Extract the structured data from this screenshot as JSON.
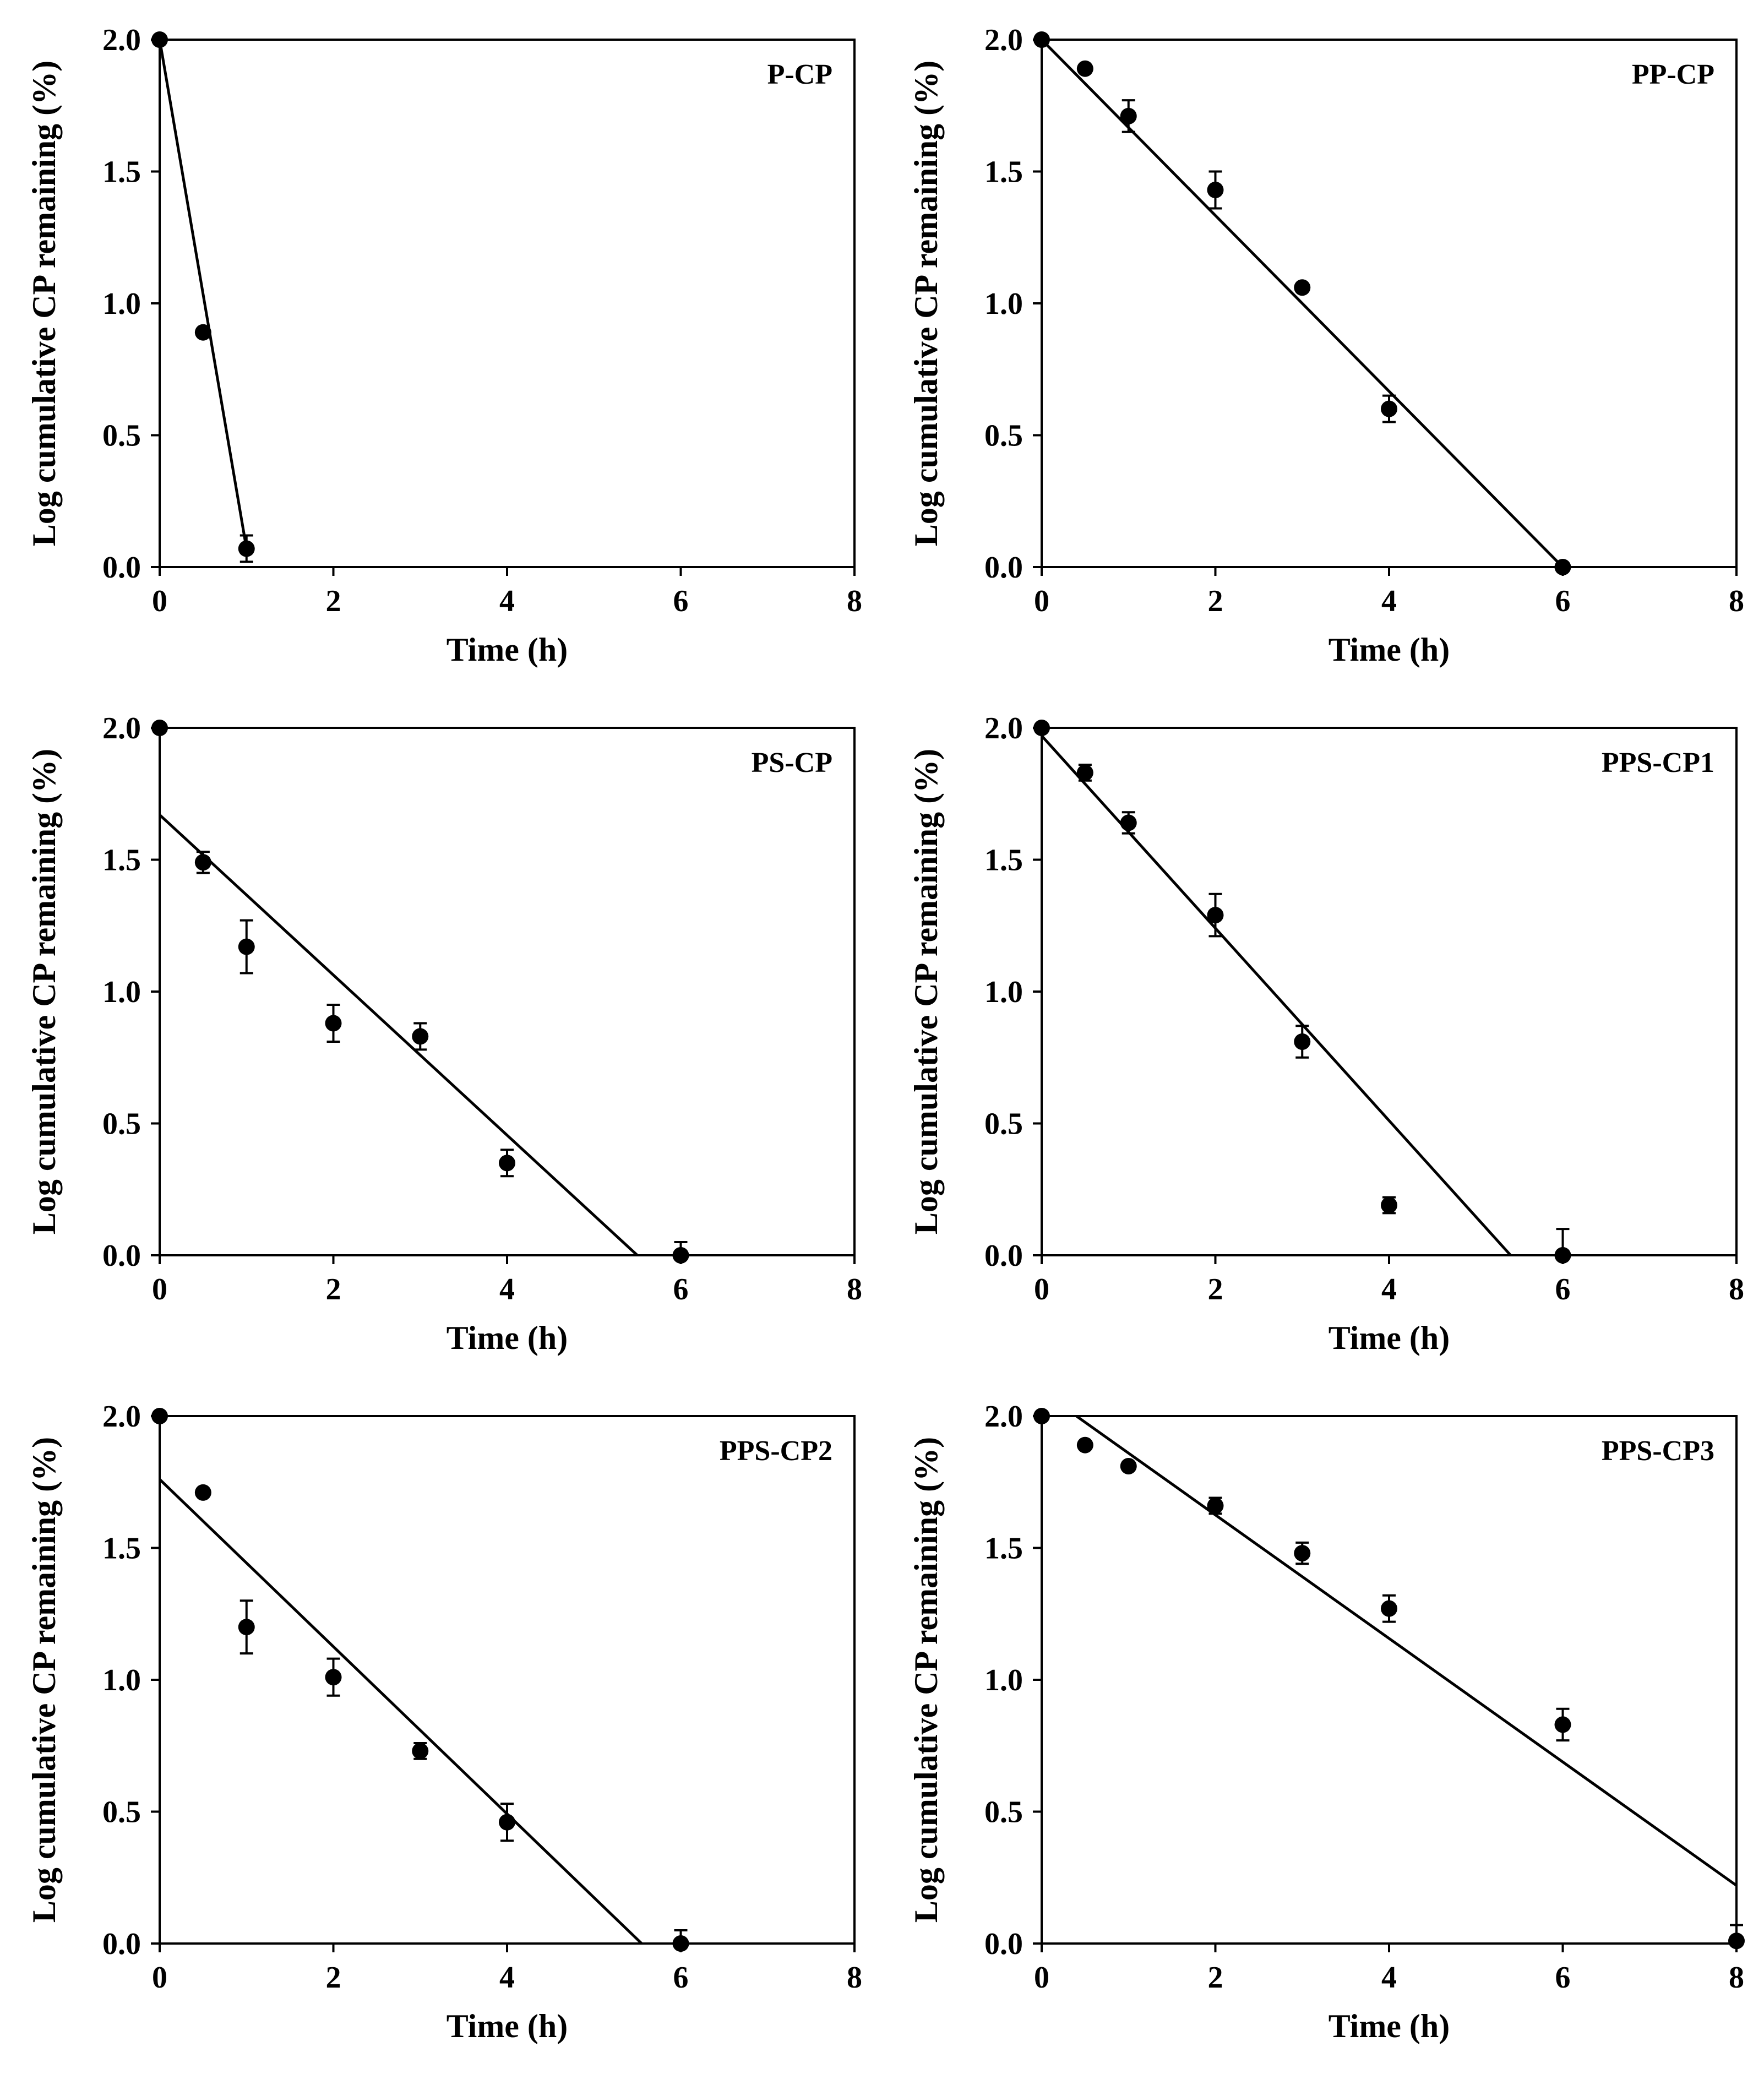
{
  "chart_data": [
    {
      "type": "scatter",
      "title": "P-CP",
      "xlabel": "Time (h)",
      "ylabel": "Log cumulative CP remaining  (%)",
      "xlim": [
        0,
        8
      ],
      "ylim": [
        0,
        2
      ],
      "xticks": [
        "0",
        "2",
        "4",
        "6",
        "8"
      ],
      "yticks": [
        "0.0",
        "0.5",
        "1.0",
        "1.5",
        "2.0"
      ],
      "points": [
        {
          "x": 0,
          "y": 2.0,
          "err": 0
        },
        {
          "x": 0.5,
          "y": 0.89,
          "err": 0
        },
        {
          "x": 1,
          "y": 0.07,
          "err": 0.05
        }
      ],
      "fit_line": {
        "x": [
          0,
          1
        ],
        "y": [
          2.0,
          0.07
        ]
      }
    },
    {
      "type": "scatter",
      "title": "PP-CP",
      "xlabel": "Time (h)",
      "ylabel": "Log cumulative CP remaining (%)",
      "xlim": [
        0,
        8
      ],
      "ylim": [
        0,
        2
      ],
      "xticks": [
        "0",
        "2",
        "4",
        "6",
        "8"
      ],
      "yticks": [
        "0.0",
        "0.5",
        "1.0",
        "1.5",
        "2.0"
      ],
      "points": [
        {
          "x": 0,
          "y": 2.0,
          "err": 0
        },
        {
          "x": 0.5,
          "y": 1.89,
          "err": 0
        },
        {
          "x": 1,
          "y": 1.71,
          "err": 0.06
        },
        {
          "x": 2,
          "y": 1.43,
          "err": 0.07
        },
        {
          "x": 3,
          "y": 1.06,
          "err": 0
        },
        {
          "x": 4,
          "y": 0.6,
          "err": 0.05
        },
        {
          "x": 6,
          "y": 0.0,
          "err": 0
        }
      ],
      "fit_line": {
        "x": [
          0,
          6
        ],
        "y": [
          2.0,
          0.0
        ]
      }
    },
    {
      "type": "scatter",
      "title": "PS-CP",
      "xlabel": "Time (h)",
      "ylabel": "Log cumulative CP remaining (%)",
      "xlim": [
        0,
        8
      ],
      "ylim": [
        0,
        2
      ],
      "xticks": [
        "0",
        "2",
        "4",
        "6",
        "8"
      ],
      "yticks": [
        "0.0",
        "0.5",
        "1.0",
        "1.5",
        "2.0"
      ],
      "points": [
        {
          "x": 0,
          "y": 2.0,
          "err": 0
        },
        {
          "x": 0.5,
          "y": 1.49,
          "err": 0.04
        },
        {
          "x": 1,
          "y": 1.17,
          "err": 0.1
        },
        {
          "x": 2,
          "y": 0.88,
          "err": 0.07
        },
        {
          "x": 3,
          "y": 0.83,
          "err": 0.05
        },
        {
          "x": 4,
          "y": 0.35,
          "err": 0.05
        },
        {
          "x": 6,
          "y": 0.0,
          "err": 0.05
        }
      ],
      "fit_line": {
        "x": [
          0,
          5.5
        ],
        "y": [
          1.67,
          0.0
        ]
      }
    },
    {
      "type": "scatter",
      "title": "PPS-CP1",
      "xlabel": "Time (h)",
      "ylabel": "Log cumulative CP remaining (%)",
      "xlim": [
        0,
        8
      ],
      "ylim": [
        0,
        2
      ],
      "xticks": [
        "0",
        "2",
        "4",
        "6",
        "8"
      ],
      "yticks": [
        "0.0",
        "0.5",
        "1.0",
        "1.5",
        "2.0"
      ],
      "points": [
        {
          "x": 0,
          "y": 2.0,
          "err": 0
        },
        {
          "x": 0.5,
          "y": 1.83,
          "err": 0.03
        },
        {
          "x": 1,
          "y": 1.64,
          "err": 0.04
        },
        {
          "x": 2,
          "y": 1.29,
          "err": 0.08
        },
        {
          "x": 3,
          "y": 0.81,
          "err": 0.06
        },
        {
          "x": 4,
          "y": 0.19,
          "err": 0.03
        },
        {
          "x": 6,
          "y": 0.0,
          "err": 0.1
        }
      ],
      "fit_line": {
        "x": [
          0,
          5.4
        ],
        "y": [
          1.97,
          0.0
        ]
      }
    },
    {
      "type": "scatter",
      "title": "PPS-CP2",
      "xlabel": "Time (h)",
      "ylabel": "Log cumulative CP remaining (%)",
      "xlim": [
        0,
        8
      ],
      "ylim": [
        0,
        2
      ],
      "xticks": [
        "0",
        "2",
        "4",
        "6",
        "8"
      ],
      "yticks": [
        "0.0",
        "0.5",
        "1.0",
        "1.5",
        "2.0"
      ],
      "points": [
        {
          "x": 0,
          "y": 2.0,
          "err": 0
        },
        {
          "x": 0.5,
          "y": 1.71,
          "err": 0
        },
        {
          "x": 1,
          "y": 1.2,
          "err": 0.1
        },
        {
          "x": 2,
          "y": 1.01,
          "err": 0.07
        },
        {
          "x": 3,
          "y": 0.73,
          "err": 0.03
        },
        {
          "x": 4,
          "y": 0.46,
          "err": 0.07
        },
        {
          "x": 6,
          "y": 0.0,
          "err": 0.05
        }
      ],
      "fit_line": {
        "x": [
          0,
          5.55
        ],
        "y": [
          1.76,
          0.0
        ]
      }
    },
    {
      "type": "scatter",
      "title": "PPS-CP3",
      "xlabel": "Time (h)",
      "ylabel": "Log cumulative CP remaining (%)",
      "xlim": [
        0,
        8
      ],
      "ylim": [
        0,
        2
      ],
      "xticks": [
        "0",
        "2",
        "4",
        "6",
        "8"
      ],
      "yticks": [
        "0.0",
        "0.5",
        "1.0",
        "1.5",
        "2.0"
      ],
      "points": [
        {
          "x": 0,
          "y": 2.0,
          "err": 0
        },
        {
          "x": 0.5,
          "y": 1.89,
          "err": 0
        },
        {
          "x": 1,
          "y": 1.81,
          "err": 0
        },
        {
          "x": 2,
          "y": 1.66,
          "err": 0.03
        },
        {
          "x": 3,
          "y": 1.48,
          "err": 0.04
        },
        {
          "x": 4,
          "y": 1.27,
          "err": 0.05
        },
        {
          "x": 6,
          "y": 0.83,
          "err": 0.06
        },
        {
          "x": 8,
          "y": 0.01,
          "err": 0.06
        }
      ],
      "fit_line": {
        "x": [
          0.4,
          8
        ],
        "y": [
          2.0,
          0.22
        ]
      }
    }
  ]
}
